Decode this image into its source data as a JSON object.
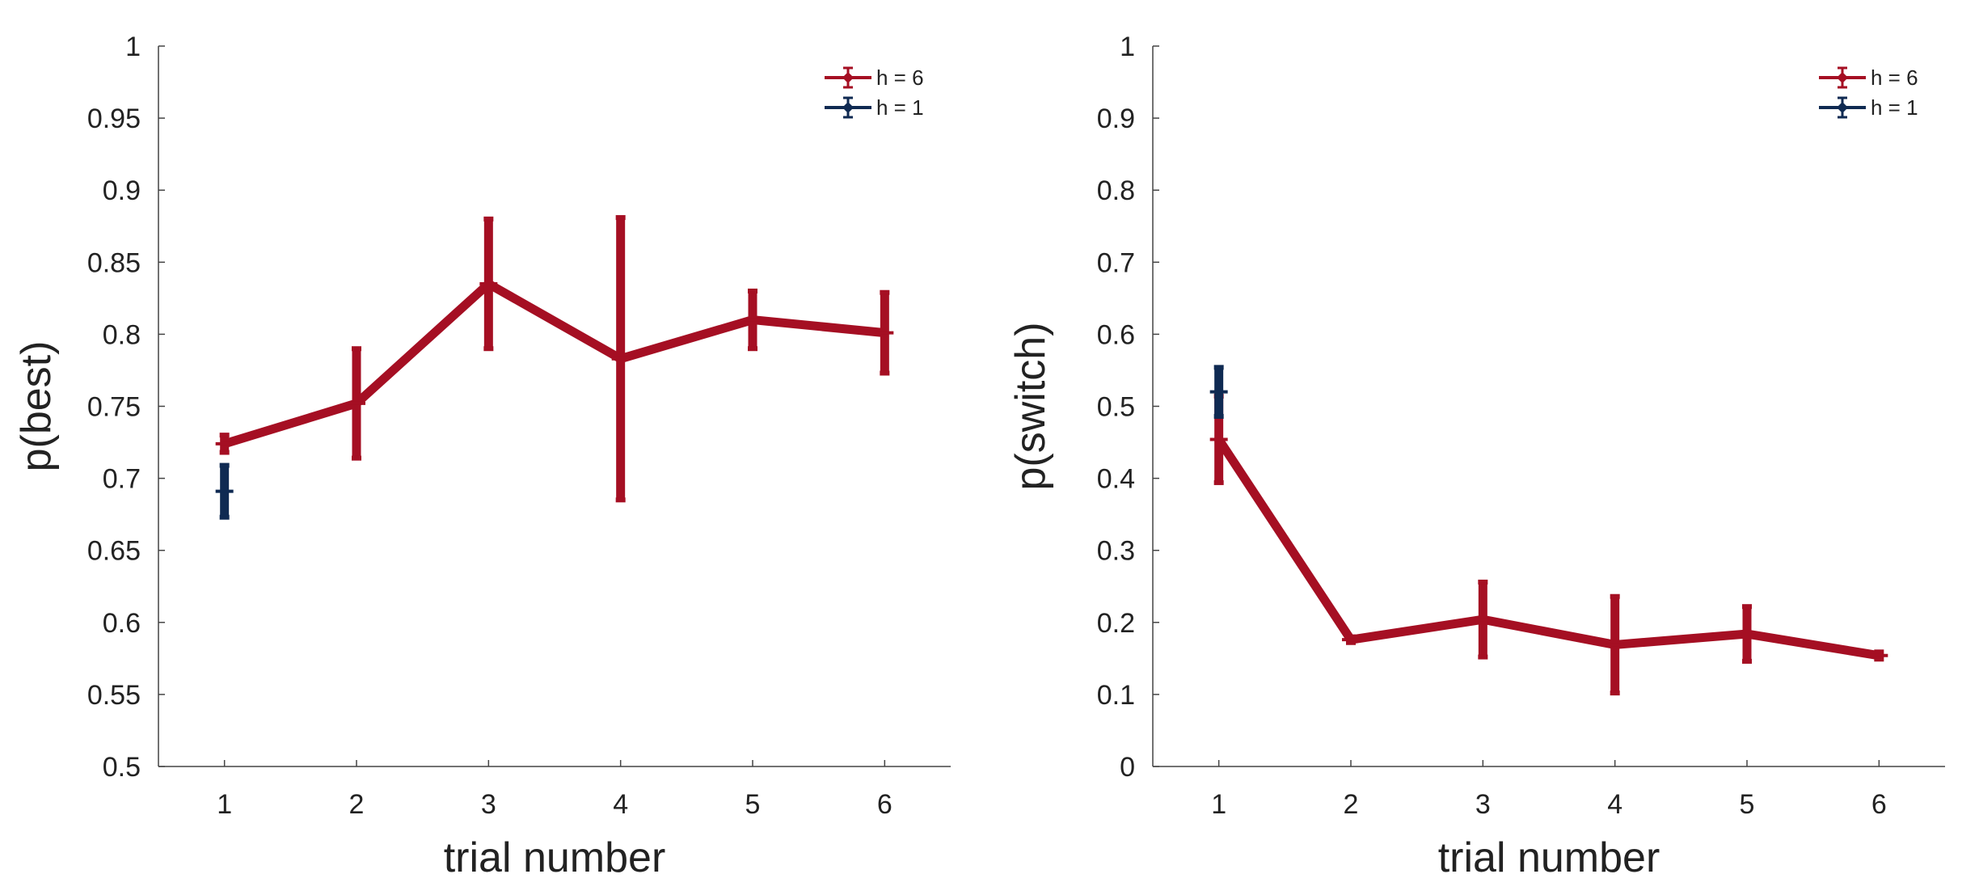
{
  "chart_data": [
    {
      "type": "line",
      "xlabel": "trial number",
      "ylabel": "p(best)",
      "x": [
        1,
        2,
        3,
        4,
        5,
        6
      ],
      "xticks": [
        "1",
        "2",
        "3",
        "4",
        "5",
        "6"
      ],
      "xlim": [
        0.5,
        6.5
      ],
      "ylim": [
        0.5,
        1
      ],
      "yticks": [
        "0.5",
        "0.55",
        "0.6",
        "0.65",
        "0.7",
        "0.75",
        "0.8",
        "0.85",
        "0.9",
        "0.95",
        "1"
      ],
      "grid": false,
      "legend_position": "top-right",
      "series": [
        {
          "name": "h = 6",
          "color": "#a50f23",
          "x": [
            1,
            2,
            3,
            4,
            5,
            6
          ],
          "y": [
            0.724,
            0.752,
            0.835,
            0.783,
            0.81,
            0.801
          ],
          "error": [
            0.006,
            0.038,
            0.045,
            0.098,
            0.02,
            0.028
          ]
        },
        {
          "name": "h = 1",
          "color": "#0f2a52",
          "x": [
            1
          ],
          "y": [
            0.691
          ],
          "error": [
            0.018
          ]
        }
      ]
    },
    {
      "type": "line",
      "xlabel": "trial number",
      "ylabel": "p(switch)",
      "x": [
        1,
        2,
        3,
        4,
        5,
        6
      ],
      "xticks": [
        "1",
        "2",
        "3",
        "4",
        "5",
        "6"
      ],
      "xlim": [
        0.5,
        6.5
      ],
      "ylim": [
        0,
        1
      ],
      "yticks": [
        "0",
        "0.1",
        "0.2",
        "0.3",
        "0.4",
        "0.5",
        "0.6",
        "0.7",
        "0.8",
        "0.9",
        "1"
      ],
      "grid": false,
      "legend_position": "top-right",
      "series": [
        {
          "name": "h = 6",
          "color": "#a50f23",
          "x": [
            1,
            2,
            3,
            4,
            5,
            6
          ],
          "y": [
            0.454,
            0.176,
            0.204,
            0.169,
            0.184,
            0.154
          ],
          "error": [
            0.06,
            0.004,
            0.052,
            0.067,
            0.038,
            0.005
          ]
        },
        {
          "name": "h = 1",
          "color": "#0f2a52",
          "x": [
            1
          ],
          "y": [
            0.52
          ],
          "error": [
            0.034
          ]
        }
      ]
    }
  ]
}
